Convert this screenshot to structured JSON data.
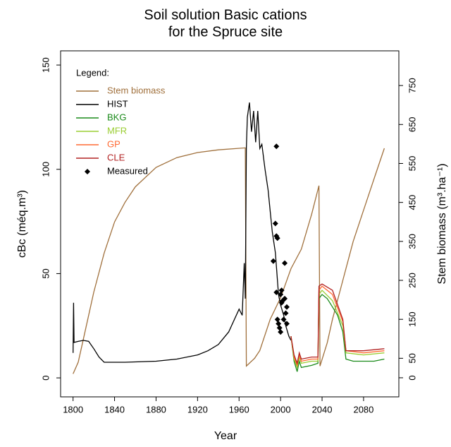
{
  "chart_data": {
    "type": "line",
    "title": "Soil solution Basic cations",
    "subtitle": "for the Spruce site",
    "x_label": "Year",
    "y_label": "cBc (méq.m³)",
    "y2_label": "Stem biomass (m³.ha⁻¹)",
    "xlim": [
      1788,
      2114
    ],
    "xticks": [
      1800,
      1840,
      1880,
      1920,
      1960,
      2000,
      2040,
      2080
    ],
    "ylim": [
      -9.1,
      156.8
    ],
    "yticks": [
      0,
      50,
      100,
      150
    ],
    "y2lim": [
      -49,
      839
    ],
    "y2ticks": [
      0,
      50,
      150,
      250,
      350,
      450,
      550,
      650,
      750
    ],
    "legend": "topleft",
    "legend_title": "Legend:",
    "series": [
      {
        "name": "Stem biomass",
        "color": "#a0703c",
        "axis": "y2",
        "x": [
          1800,
          1805,
          1810,
          1820,
          1830,
          1840,
          1850,
          1860,
          1880,
          1900,
          1920,
          1940,
          1966,
          1967,
          1975,
          1980,
          1990,
          2000,
          2010,
          2020,
          2030,
          2037,
          2038,
          2045,
          2050,
          2060,
          2070,
          2080,
          2090,
          2100
        ],
        "values": [
          10,
          40,
          100,
          220,
          320,
          400,
          450,
          490,
          540,
          565,
          578,
          585,
          590,
          30,
          50,
          70,
          150,
          205,
          280,
          330,
          420,
          493,
          30,
          90,
          150,
          250,
          350,
          430,
          510,
          589
        ]
      },
      {
        "name": "HIST",
        "color": "#000000",
        "x": [
          1800,
          1800.5,
          1801,
          1805,
          1810,
          1815,
          1820,
          1825,
          1830,
          1850,
          1880,
          1900,
          1920,
          1930,
          1940,
          1950,
          1960,
          1963,
          1965,
          1966,
          1967,
          1968,
          1970,
          1972,
          1974,
          1976,
          1978,
          1980,
          1982,
          1985,
          1988,
          1990,
          1992,
          1995,
          1998,
          2000,
          2003,
          2005,
          2008,
          2010
        ],
        "values": [
          12,
          36,
          17,
          17.5,
          18,
          17.5,
          14,
          10,
          7.5,
          7.5,
          8,
          9,
          11,
          13,
          16,
          22,
          33,
          30,
          55,
          38,
          110,
          125,
          132,
          118,
          128,
          113,
          128,
          110,
          112,
          100,
          90,
          80,
          70,
          60,
          40,
          35,
          30,
          25,
          20,
          18
        ]
      },
      {
        "name": "BKG",
        "color": "#1a8a1a",
        "x": [
          2010,
          2013,
          2016,
          2018,
          2020,
          2030,
          2036,
          2037,
          2040,
          2045,
          2050,
          2055,
          2060,
          2063,
          2070,
          2080,
          2090,
          2100
        ],
        "values": [
          20,
          8,
          3,
          8,
          5,
          6,
          7,
          38,
          40,
          38,
          34,
          30,
          22,
          9,
          8,
          8,
          8,
          9
        ]
      },
      {
        "name": "MFR",
        "color": "#9acd32",
        "x": [
          2010,
          2013,
          2016,
          2018,
          2020,
          2030,
          2036,
          2037,
          2040,
          2050,
          2060,
          2063,
          2080,
          2100
        ],
        "values": [
          20,
          9,
          5,
          10,
          7,
          8,
          8,
          40,
          42,
          37,
          25,
          12,
          11,
          12
        ]
      },
      {
        "name": "GP",
        "color": "#ff6a33",
        "x": [
          2010,
          2013,
          2016,
          2018,
          2020,
          2030,
          2036,
          2037,
          2040,
          2050,
          2060,
          2063,
          2080,
          2100
        ],
        "values": [
          20,
          10,
          6,
          11,
          8,
          9,
          9,
          42,
          44,
          40,
          27,
          13,
          12,
          13
        ]
      },
      {
        "name": "CLE",
        "color": "#b22222",
        "x": [
          2010,
          2013,
          2016,
          2018,
          2020,
          2030,
          2036,
          2037,
          2040,
          2050,
          2060,
          2063,
          2080,
          2100
        ],
        "values": [
          20,
          11,
          7,
          12,
          9,
          10,
          10,
          44,
          45,
          42,
          28,
          13,
          13,
          14
        ]
      }
    ],
    "points": {
      "name": "Measured",
      "color": "#000000",
      "x": [
        1996,
        1995,
        1996,
        1997,
        1993,
        2004,
        1996,
        2001,
        1997,
        1998,
        1999,
        2000,
        2003,
        2005,
        2004,
        2006,
        2000,
        2002,
        2001,
        2006
      ],
      "values": [
        111,
        74,
        68,
        67,
        56,
        55,
        41,
        36,
        28,
        26,
        24,
        22,
        28,
        31,
        38,
        34,
        40,
        37,
        42,
        26
      ]
    }
  }
}
